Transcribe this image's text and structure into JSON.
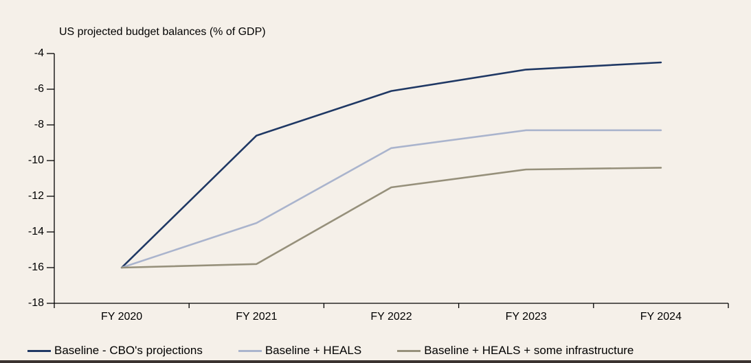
{
  "page": {
    "background_color": "#f5f0e9",
    "bottom_border_color": "#3a3230"
  },
  "chart_data": {
    "type": "line",
    "title": "US projected budget balances (% of GDP)",
    "categories": [
      "FY 2020",
      "FY 2021",
      "FY 2022",
      "FY 2023",
      "FY 2024"
    ],
    "series": [
      {
        "name": "Baseline - CBO's projections",
        "color": "#1f3864",
        "values": [
          -16.0,
          -8.6,
          -6.1,
          -4.9,
          -4.5
        ]
      },
      {
        "name": "Baseline + HEALS",
        "color": "#aab4cd",
        "values": [
          -16.0,
          -13.5,
          -9.3,
          -8.3,
          -8.3
        ]
      },
      {
        "name": "Baseline + HEALS + some infrastructure",
        "color": "#96907b",
        "values": [
          -16.0,
          -15.8,
          -11.5,
          -10.5,
          -10.4
        ]
      }
    ],
    "ylim": [
      -18,
      -4
    ],
    "yticks": [
      -4,
      -6,
      -8,
      -10,
      -12,
      -14,
      -16,
      -18
    ],
    "xlabel": "",
    "ylabel": "",
    "grid": false,
    "legend_position": "bottom",
    "axis_color": "#000000",
    "text_color": "#000000"
  }
}
